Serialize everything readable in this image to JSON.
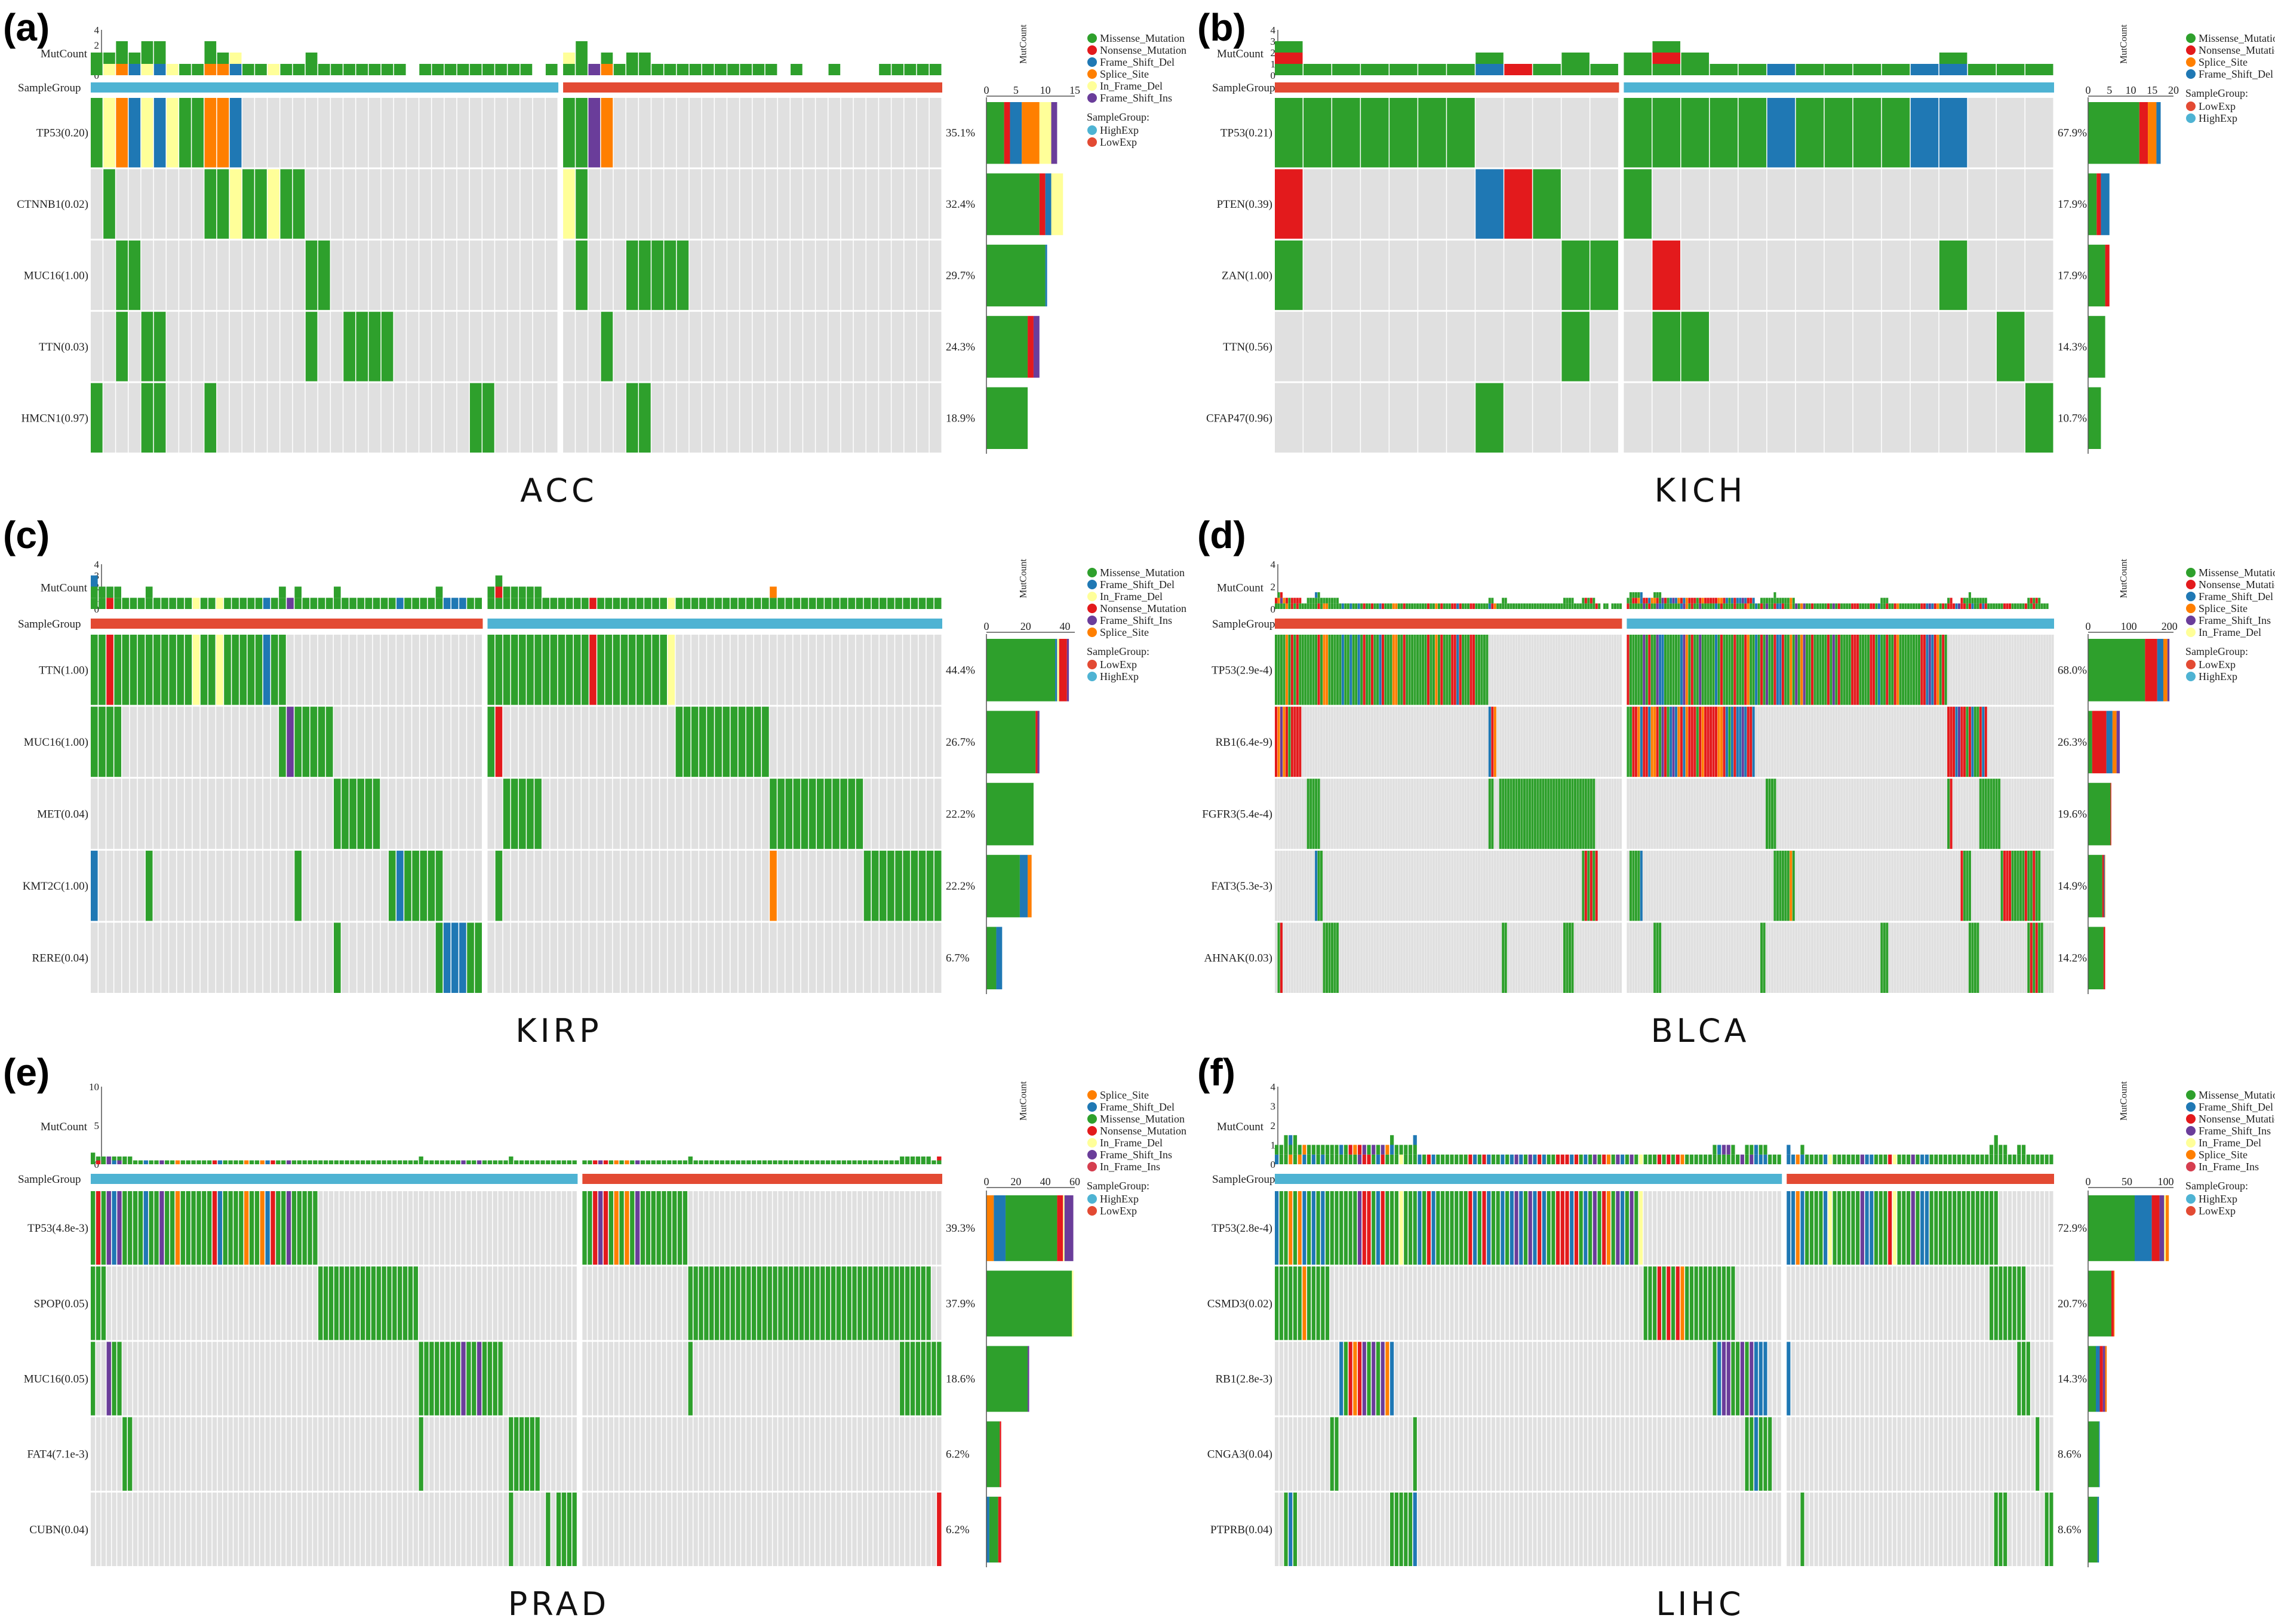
{
  "colors": {
    "Missense_Mutation": "#2ea02c",
    "Nonsense_Mutation": "#e31a1c",
    "Frame_Shift_Del": "#1f78b4",
    "Splice_Site": "#ff7f00",
    "In_Frame_Del": "#ffff99",
    "Frame_Shift_Ins": "#6a3d9a",
    "In_Frame_Ins": "#d53e4f",
    "HighExp": "#4eb3d3",
    "LowExp": "#e34a33",
    "empty": "#e0e0e0"
  },
  "labels": {
    "mutcount": "MutCount",
    "samplegroup": "SampleGroup",
    "samplegroup_legend": "SampleGroup:"
  },
  "chart_data": [
    {
      "type": "heatmap",
      "panel": "(a)",
      "title": "ACC",
      "legend": [
        "Missense_Mutation",
        "Nonsense_Mutation",
        "Frame_Shift_Del",
        "Splice_Site",
        "In_Frame_Del",
        "Frame_Shift_Ins"
      ],
      "group_legend": [
        "HighExp",
        "LowExp"
      ],
      "groups": [
        {
          "name": "HighExp",
          "n": 37
        },
        {
          "name": "LowExp",
          "n": 30
        }
      ],
      "top_ticks": [
        "0",
        "1",
        "2",
        "4"
      ],
      "side_ticks": [
        "0",
        "5",
        "10",
        "15"
      ],
      "side_max": 15,
      "genes": [
        {
          "label": "TP53(0.20)",
          "pct": "35.1%",
          "mix": {
            "Missense_Mutation": 3,
            "Frame_Shift_Del": 2,
            "Splice_Site": 3,
            "In_Frame_Del": 2,
            "Frame_Shift_Ins": 1,
            "Nonsense_Mutation": 1
          },
          "segs": [
            [
              0,
              12
            ],
            [
              37,
              4
            ]
          ]
        },
        {
          "label": "CTNNB1(0.02)",
          "pct": "32.4%",
          "mix": {
            "Missense_Mutation": 9,
            "In_Frame_Del": 2,
            "Nonsense_Mutation": 1,
            "Frame_Shift_Del": 1
          },
          "segs": [
            [
              1,
              1
            ],
            [
              9,
              8
            ],
            [
              37,
              1
            ],
            [
              38,
              1
            ]
          ]
        },
        {
          "label": "MUC16(1.00)",
          "pct": "29.7%",
          "mix": {
            "Missense_Mutation": 10,
            "Frame_Shift_Del": 0.3
          },
          "segs": [
            [
              2,
              2
            ],
            [
              17,
              2
            ],
            [
              38,
              1
            ],
            [
              42,
              5
            ]
          ]
        },
        {
          "label": "TTN(0.03)",
          "pct": "24.3%",
          "mix": {
            "Missense_Mutation": 7,
            "Frame_Shift_Ins": 1,
            "Nonsense_Mutation": 1
          },
          "segs": [
            [
              2,
              1
            ],
            [
              4,
              2
            ],
            [
              17,
              1
            ],
            [
              20,
              4
            ],
            [
              40,
              1
            ]
          ]
        },
        {
          "label": "HMCN1(0.97)",
          "pct": "18.9%",
          "mix": {
            "Missense_Mutation": 7
          },
          "segs": [
            [
              0,
              1
            ],
            [
              4,
              2
            ],
            [
              9,
              1
            ],
            [
              30,
              2
            ],
            [
              42,
              2
            ]
          ]
        }
      ]
    },
    {
      "type": "heatmap",
      "panel": "(b)",
      "title": "KICH",
      "legend": [
        "Missense_Mutation",
        "Nonsense_Mutation",
        "Splice_Site",
        "Frame_Shift_Del"
      ],
      "group_legend": [
        "LowExp",
        "HighExp"
      ],
      "groups": [
        {
          "name": "LowExp",
          "n": 12
        },
        {
          "name": "HighExp",
          "n": 15
        }
      ],
      "top_ticks": [
        "0",
        "1",
        "2",
        "3",
        "4"
      ],
      "side_ticks": [
        "0",
        "5",
        "10",
        "15",
        "20"
      ],
      "side_max": 20,
      "genes": [
        {
          "label": "TP53(0.21)",
          "pct": "67.9%",
          "mix": {
            "Missense_Mutation": 12,
            "Nonsense_Mutation": 2,
            "Splice_Site": 2,
            "Frame_Shift_Del": 1
          },
          "segs": [
            [
              0,
              7
            ],
            [
              12,
              12
            ]
          ]
        },
        {
          "label": "PTEN(0.39)",
          "pct": "17.9%",
          "mix": {
            "Nonsense_Mutation": 1,
            "Missense_Mutation": 2,
            "Frame_Shift_Del": 2
          },
          "segs": [
            [
              0,
              1
            ],
            [
              7,
              3
            ],
            [
              12,
              1
            ]
          ]
        },
        {
          "label": "ZAN(1.00)",
          "pct": "17.9%",
          "mix": {
            "Nonsense_Mutation": 1,
            "Missense_Mutation": 4
          },
          "segs": [
            [
              0,
              1
            ],
            [
              10,
              2
            ],
            [
              13,
              1
            ],
            [
              23,
              1
            ]
          ]
        },
        {
          "label": "TTN(0.56)",
          "pct": "14.3%",
          "mix": {
            "Missense_Mutation": 4
          },
          "segs": [
            [
              10,
              1
            ],
            [
              13,
              2
            ],
            [
              25,
              1
            ]
          ]
        },
        {
          "label": "CFAP47(0.96)",
          "pct": "10.7%",
          "mix": {
            "Missense_Mutation": 3
          },
          "segs": [
            [
              7,
              1
            ],
            [
              26,
              1
            ]
          ]
        }
      ]
    },
    {
      "type": "heatmap",
      "panel": "(c)",
      "title": "KIRP",
      "legend": [
        "Missense_Mutation",
        "Frame_Shift_Del",
        "In_Frame_Del",
        "Nonsense_Mutation",
        "Frame_Shift_Ins",
        "Splice_Site"
      ],
      "group_legend": [
        "LowExp",
        "HighExp"
      ],
      "groups": [
        {
          "name": "LowExp",
          "n": 50
        },
        {
          "name": "HighExp",
          "n": 58
        }
      ],
      "top_ticks": [
        "0",
        "1",
        "2",
        "3",
        "4"
      ],
      "side_ticks": [
        "0",
        "20",
        "40"
      ],
      "side_max": 45,
      "genes": [
        {
          "label": "TTN(1.00)",
          "pct": "44.4%",
          "mix": {
            "Missense_Mutation": 35,
            "Nonsense_Mutation": 4,
            "Frame_Shift_Del": 1,
            "In_Frame_Del": 1,
            "Frame_Shift_Ins": 1
          },
          "segs": [
            [
              0,
              25
            ],
            [
              50,
              24
            ]
          ]
        },
        {
          "label": "MUC16(1.00)",
          "pct": "26.7%",
          "mix": {
            "Missense_Mutation": 25,
            "Nonsense_Mutation": 1,
            "Frame_Shift_Ins": 1
          },
          "segs": [
            [
              0,
              4
            ],
            [
              24,
              7
            ],
            [
              50,
              2
            ],
            [
              74,
              12
            ]
          ]
        },
        {
          "label": "MET(0.04)",
          "pct": "22.2%",
          "mix": {
            "Missense_Mutation": 24
          },
          "segs": [
            [
              31,
              6
            ],
            [
              52,
              5
            ],
            [
              86,
              12
            ]
          ]
        },
        {
          "label": "KMT2C(1.00)",
          "pct": "22.2%",
          "mix": {
            "Missense_Mutation": 17,
            "Frame_Shift_Del": 4,
            "Splice_Site": 2
          },
          "segs": [
            [
              0,
              1
            ],
            [
              7,
              1
            ],
            [
              26,
              1
            ],
            [
              38,
              7
            ],
            [
              51,
              1
            ],
            [
              86,
              1
            ],
            [
              98,
              10
            ]
          ]
        },
        {
          "label": "RERE(0.04)",
          "pct": "6.7%",
          "mix": {
            "Missense_Mutation": 5,
            "Frame_Shift_Del": 3
          },
          "segs": [
            [
              31,
              1
            ],
            [
              44,
              6
            ]
          ]
        }
      ]
    },
    {
      "type": "heatmap",
      "panel": "(d)",
      "title": "BLCA",
      "legend": [
        "Missense_Mutation",
        "Nonsense_Mutation",
        "Frame_Shift_Del",
        "Splice_Site",
        "Frame_Shift_Ins",
        "In_Frame_Del"
      ],
      "group_legend": [
        "LowExp",
        "HighExp"
      ],
      "groups": [
        {
          "name": "LowExp",
          "n": 130
        },
        {
          "name": "HighExp",
          "n": 160
        }
      ],
      "top_ticks": [
        "0",
        "2",
        "4"
      ],
      "side_ticks": [
        "0",
        "100",
        "200"
      ],
      "side_max": 210,
      "genes": [
        {
          "label": "TP53(2.9e-4)",
          "pct": "68.0%",
          "mix": {
            "Missense_Mutation": 140,
            "Nonsense_Mutation": 30,
            "Frame_Shift_Del": 15,
            "Splice_Site": 10,
            "Frame_Shift_Ins": 5
          },
          "segs": [
            [
              0,
              80
            ],
            [
              130,
              120
            ]
          ]
        },
        {
          "label": "RB1(6.4e-9)",
          "pct": "26.3%",
          "mix": {
            "Missense_Mutation": 10,
            "Nonsense_Mutation": 35,
            "Frame_Shift_Del": 15,
            "Splice_Site": 10,
            "Frame_Shift_Ins": 8
          },
          "segs": [
            [
              0,
              10
            ],
            [
              80,
              3
            ],
            [
              130,
              48
            ],
            [
              250,
              15
            ]
          ]
        },
        {
          "label": "FGFR3(5.4e-4)",
          "pct": "19.6%",
          "mix": {
            "Missense_Mutation": 55,
            "Nonsense_Mutation": 2
          },
          "segs": [
            [
              12,
              5
            ],
            [
              80,
              2
            ],
            [
              84,
              36
            ],
            [
              182,
              4
            ],
            [
              250,
              2
            ],
            [
              262,
              8
            ]
          ]
        },
        {
          "label": "FAT3(5.3e-3)",
          "pct": "14.9%",
          "mix": {
            "Missense_Mutation": 35,
            "Nonsense_Mutation": 4,
            "Frame_Shift_Del": 2,
            "Splice_Site": 1
          },
          "segs": [
            [
              15,
              3
            ],
            [
              115,
              6
            ],
            [
              131,
              5
            ],
            [
              185,
              8
            ],
            [
              255,
              4
            ],
            [
              270,
              15
            ]
          ]
        },
        {
          "label": "AHNAK(0.03)",
          "pct": "14.2%",
          "mix": {
            "Missense_Mutation": 38,
            "Nonsense_Mutation": 4
          },
          "segs": [
            [
              1,
              2
            ],
            [
              18,
              6
            ],
            [
              85,
              2
            ],
            [
              108,
              4
            ],
            [
              140,
              3
            ],
            [
              180,
              2
            ],
            [
              225,
              3
            ],
            [
              258,
              4
            ],
            [
              280,
              6
            ]
          ]
        }
      ]
    },
    {
      "type": "heatmap",
      "panel": "(e)",
      "title": "PRAD",
      "legend": [
        "Splice_Site",
        "Frame_Shift_Del",
        "Missense_Mutation",
        "Nonsense_Mutation",
        "In_Frame_Del",
        "Frame_Shift_Ins",
        "In_Frame_Ins"
      ],
      "group_legend": [
        "HighExp",
        "LowExp"
      ],
      "groups": [
        {
          "name": "HighExp",
          "n": 92
        },
        {
          "name": "LowExp",
          "n": 68
        }
      ],
      "top_ticks": [
        "0",
        "5",
        "10"
      ],
      "side_ticks": [
        "0",
        "20",
        "40",
        "60"
      ],
      "side_max": 60,
      "genes": [
        {
          "label": "TP53(4.8e-3)",
          "pct": "39.3%",
          "mix": {
            "Missense_Mutation": 35,
            "Splice_Site": 5,
            "Frame_Shift_Del": 8,
            "Frame_Shift_Ins": 6,
            "Nonsense_Mutation": 4,
            "In_Frame_Del": 1
          },
          "segs": [
            [
              0,
              42
            ],
            [
              42,
              1
            ],
            [
              92,
              20
            ]
          ]
        },
        {
          "label": "SPOP(0.05)",
          "pct": "37.9%",
          "mix": {
            "Missense_Mutation": 58,
            "In_Frame_Del": 1
          },
          "segs": [
            [
              0,
              3
            ],
            [
              43,
              19
            ],
            [
              112,
              46
            ]
          ]
        },
        {
          "label": "MUC16(0.05)",
          "pct": "18.6%",
          "mix": {
            "Missense_Mutation": 28,
            "Frame_Shift_Ins": 1
          },
          "segs": [
            [
              0,
              1
            ],
            [
              3,
              3
            ],
            [
              62,
              16
            ],
            [
              112,
              1
            ],
            [
              152,
              8
            ]
          ]
        },
        {
          "label": "FAT4(7.1e-3)",
          "pct": "6.2%",
          "mix": {
            "Missense_Mutation": 9,
            "Nonsense_Mutation": 1
          },
          "segs": [
            [
              6,
              2
            ],
            [
              62,
              1
            ],
            [
              79,
              6
            ]
          ]
        },
        {
          "label": "CUBN(0.04)",
          "pct": "6.2%",
          "mix": {
            "Missense_Mutation": 6,
            "Nonsense_Mutation": 2,
            "Frame_Shift_Del": 2
          },
          "segs": [
            [
              79,
              1
            ],
            [
              86,
              1
            ],
            [
              88,
              2
            ],
            [
              90,
              2
            ],
            [
              159,
              1
            ]
          ]
        }
      ]
    },
    {
      "type": "heatmap",
      "panel": "(f)",
      "title": "LIHC",
      "legend": [
        "Missense_Mutation",
        "Frame_Shift_Del",
        "Nonsense_Mutation",
        "Frame_Shift_Ins",
        "In_Frame_Del",
        "Splice_Site",
        "In_Frame_Ins"
      ],
      "group_legend": [
        "HighExp",
        "LowExp"
      ],
      "groups": [
        {
          "name": "HighExp",
          "n": 110
        },
        {
          "name": "LowExp",
          "n": 58
        }
      ],
      "top_ticks": [
        "0",
        "1",
        "2",
        "3",
        "4"
      ],
      "side_ticks": [
        "0",
        "50",
        "100"
      ],
      "side_max": 110,
      "genes": [
        {
          "label": "TP53(2.8e-4)",
          "pct": "72.9%",
          "mix": {
            "Missense_Mutation": 60,
            "Frame_Shift_Del": 22,
            "Nonsense_Mutation": 10,
            "Frame_Shift_Ins": 6,
            "Splice_Site": 4,
            "In_Frame_Del": 2
          },
          "segs": [
            [
              0,
              80
            ],
            [
              110,
              46
            ]
          ]
        },
        {
          "label": "CSMD3(0.02)",
          "pct": "20.7%",
          "mix": {
            "Missense_Mutation": 30,
            "Nonsense_Mutation": 3,
            "Splice_Site": 1
          },
          "segs": [
            [
              0,
              12
            ],
            [
              80,
              20
            ],
            [
              154,
              8
            ]
          ]
        },
        {
          "label": "RB1(2.8e-3)",
          "pct": "14.3%",
          "mix": {
            "Missense_Mutation": 10,
            "Frame_Shift_Del": 5,
            "Nonsense_Mutation": 4,
            "Frame_Shift_Ins": 3,
            "Splice_Site": 2
          },
          "segs": [
            [
              14,
              12
            ],
            [
              95,
              12
            ],
            [
              110,
              1
            ],
            [
              160,
              3
            ]
          ]
        },
        {
          "label": "CNGA3(0.04)",
          "pct": "8.6%",
          "mix": {
            "Missense_Mutation": 14,
            "Frame_Shift_Del": 1
          },
          "segs": [
            [
              12,
              2
            ],
            [
              30,
              1
            ],
            [
              102,
              6
            ],
            [
              164,
              1
            ]
          ]
        },
        {
          "label": "PTPRB(0.04)",
          "pct": "8.6%",
          "mix": {
            "Missense_Mutation": 12,
            "Frame_Shift_Del": 2
          },
          "segs": [
            [
              2,
              3
            ],
            [
              25,
              6
            ],
            [
              113,
              1
            ],
            [
              155,
              3
            ],
            [
              166,
              2
            ]
          ]
        }
      ]
    }
  ]
}
